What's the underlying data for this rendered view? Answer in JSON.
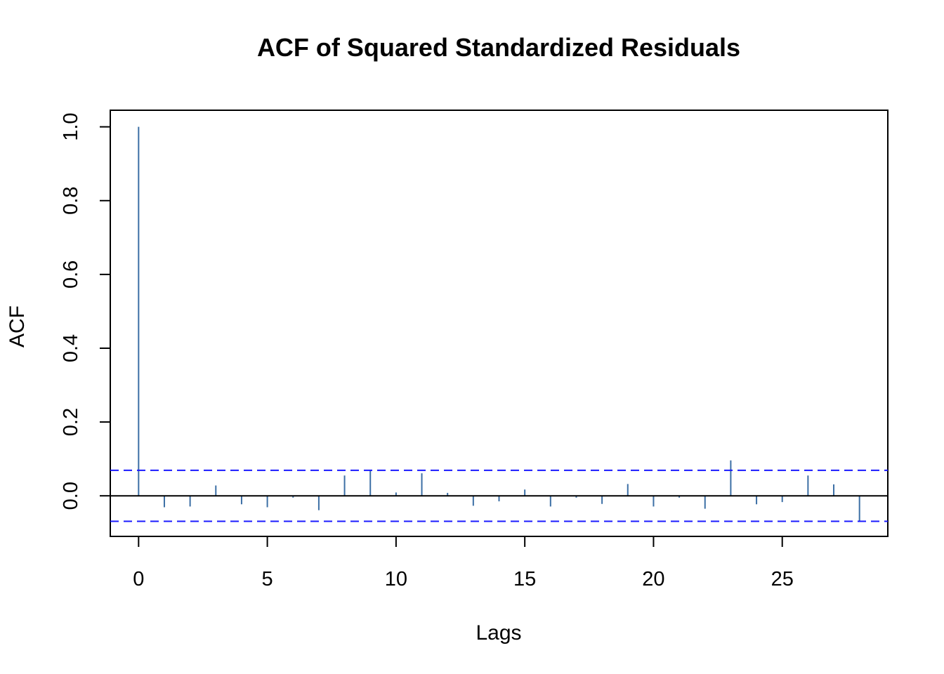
{
  "chart_data": {
    "type": "bar",
    "plot_style": "acf-spikes",
    "title": "ACF of Squared Standardized Residuals",
    "xlabel": "Lags",
    "ylabel": "ACF",
    "xlim": [
      -1.1,
      29.1
    ],
    "ylim": [
      -0.11,
      1.045
    ],
    "x_ticks": [
      0,
      5,
      10,
      15,
      20,
      25
    ],
    "x_tick_labels": [
      "0",
      "5",
      "10",
      "15",
      "20",
      "25"
    ],
    "y_ticks": [
      0.0,
      0.2,
      0.4,
      0.6,
      0.8,
      1.0
    ],
    "y_tick_labels": [
      "0.0",
      "0.2",
      "0.4",
      "0.6",
      "0.8",
      "1.0"
    ],
    "grid": false,
    "lags": [
      0,
      1,
      2,
      3,
      4,
      5,
      6,
      7,
      8,
      9,
      10,
      11,
      12,
      13,
      14,
      15,
      16,
      17,
      18,
      19,
      20,
      21,
      22,
      23,
      24,
      25,
      26,
      27,
      28
    ],
    "acf": [
      1.0,
      -0.031,
      -0.029,
      0.028,
      -0.023,
      -0.031,
      -0.005,
      -0.039,
      0.055,
      0.07,
      0.009,
      0.061,
      0.008,
      -0.027,
      -0.015,
      0.017,
      -0.029,
      -0.005,
      -0.022,
      0.032,
      -0.029,
      -0.005,
      -0.035,
      0.096,
      -0.023,
      -0.017,
      0.055,
      0.031,
      -0.069
    ],
    "confidence_limit": 0.069,
    "colors": {
      "spikes": "#3c6fa5",
      "confidence_lines": "#1a1aff",
      "zero_line": "#000000",
      "axes": "#000000"
    }
  }
}
